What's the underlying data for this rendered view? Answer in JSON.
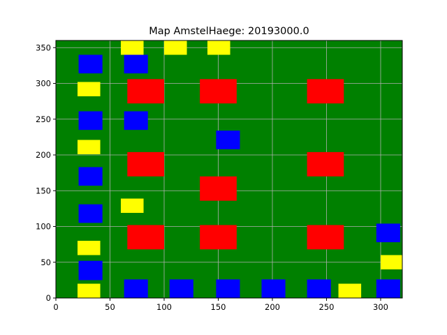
{
  "chart_data": {
    "type": "heatmap",
    "title": "Map AmstelHaege: 20193000.0",
    "xlabel": "",
    "ylabel": "",
    "xlim": [
      0,
      320
    ],
    "ylim": [
      0,
      360
    ],
    "xticks": [
      0,
      50,
      100,
      150,
      200,
      250,
      300
    ],
    "yticks": [
      0,
      50,
      100,
      150,
      200,
      250,
      300,
      350
    ],
    "grid": true,
    "colors": {
      "background": "#008000",
      "grid": "#b0b0b0",
      "red": "#ff0000",
      "blue": "#0000ff",
      "yellow": "#ffff00"
    },
    "houses": [
      {
        "color": "red",
        "x0": 66,
        "x1": 100,
        "y0": 272,
        "y1": 306
      },
      {
        "color": "red",
        "x0": 133,
        "x1": 167,
        "y0": 272,
        "y1": 306
      },
      {
        "color": "red",
        "x0": 232,
        "x1": 266,
        "y0": 272,
        "y1": 306
      },
      {
        "color": "red",
        "x0": 66,
        "x1": 100,
        "y0": 170,
        "y1": 204
      },
      {
        "color": "red",
        "x0": 232,
        "x1": 266,
        "y0": 170,
        "y1": 204
      },
      {
        "color": "red",
        "x0": 133,
        "x1": 167,
        "y0": 136,
        "y1": 170
      },
      {
        "color": "red",
        "x0": 66,
        "x1": 100,
        "y0": 68,
        "y1": 102
      },
      {
        "color": "red",
        "x0": 133,
        "x1": 167,
        "y0": 68,
        "y1": 102
      },
      {
        "color": "red",
        "x0": 232,
        "x1": 266,
        "y0": 68,
        "y1": 102
      },
      {
        "color": "blue",
        "x0": 21,
        "x1": 43,
        "y0": 314,
        "y1": 340
      },
      {
        "color": "blue",
        "x0": 63,
        "x1": 85,
        "y0": 314,
        "y1": 340
      },
      {
        "color": "blue",
        "x0": 21,
        "x1": 43,
        "y0": 235,
        "y1": 261
      },
      {
        "color": "blue",
        "x0": 63,
        "x1": 85,
        "y0": 235,
        "y1": 261
      },
      {
        "color": "blue",
        "x0": 148,
        "x1": 170,
        "y0": 208,
        "y1": 234
      },
      {
        "color": "blue",
        "x0": 21,
        "x1": 43,
        "y0": 157,
        "y1": 183
      },
      {
        "color": "blue",
        "x0": 21,
        "x1": 43,
        "y0": 105,
        "y1": 131
      },
      {
        "color": "blue",
        "x0": 296,
        "x1": 318,
        "y0": 78,
        "y1": 104
      },
      {
        "color": "blue",
        "x0": 21,
        "x1": 43,
        "y0": 25,
        "y1": 52
      },
      {
        "color": "blue",
        "x0": 63,
        "x1": 85,
        "y0": 0,
        "y1": 26
      },
      {
        "color": "blue",
        "x0": 105,
        "x1": 127,
        "y0": 0,
        "y1": 26
      },
      {
        "color": "blue",
        "x0": 148,
        "x1": 170,
        "y0": 0,
        "y1": 26
      },
      {
        "color": "blue",
        "x0": 190,
        "x1": 212,
        "y0": 0,
        "y1": 26
      },
      {
        "color": "blue",
        "x0": 232,
        "x1": 254,
        "y0": 0,
        "y1": 26
      },
      {
        "color": "blue",
        "x0": 296,
        "x1": 318,
        "y0": 0,
        "y1": 26
      },
      {
        "color": "yellow",
        "x0": 60,
        "x1": 81,
        "y0": 340,
        "y1": 360
      },
      {
        "color": "yellow",
        "x0": 100,
        "x1": 121,
        "y0": 340,
        "y1": 360
      },
      {
        "color": "yellow",
        "x0": 140,
        "x1": 161,
        "y0": 340,
        "y1": 360
      },
      {
        "color": "yellow",
        "x0": 20,
        "x1": 41,
        "y0": 282,
        "y1": 302
      },
      {
        "color": "yellow",
        "x0": 20,
        "x1": 41,
        "y0": 201,
        "y1": 221
      },
      {
        "color": "yellow",
        "x0": 60,
        "x1": 81,
        "y0": 119,
        "y1": 139
      },
      {
        "color": "yellow",
        "x0": 20,
        "x1": 41,
        "y0": 60,
        "y1": 80
      },
      {
        "color": "yellow",
        "x0": 300,
        "x1": 320,
        "y0": 40,
        "y1": 60
      },
      {
        "color": "yellow",
        "x0": 20,
        "x1": 41,
        "y0": 0,
        "y1": 20
      },
      {
        "color": "yellow",
        "x0": 261,
        "x1": 282,
        "y0": 0,
        "y1": 20
      }
    ]
  }
}
